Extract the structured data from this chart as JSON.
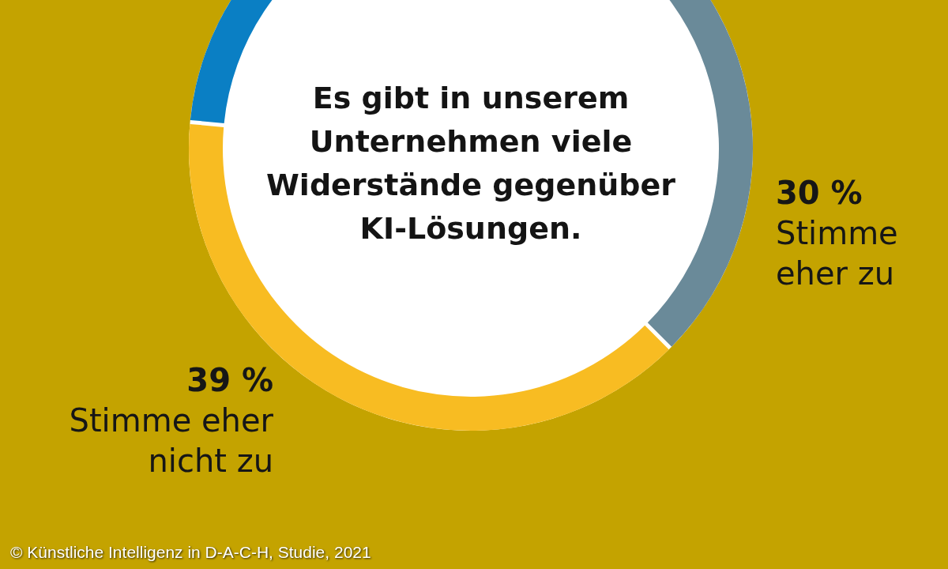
{
  "chart_data": {
    "type": "donut",
    "title": "Es gibt in unserem Unternehmen viele Widerstände gegenüber KI-Lösungen.",
    "categories": [
      "Stimme eher zu",
      "Stimme eher nicht zu",
      null
    ],
    "values": [
      30,
      39,
      31
    ],
    "value_labels": [
      "30 %",
      "39 %",
      null
    ],
    "colors": [
      "#6a8a99",
      "#f8bc22",
      "#0a7fc4"
    ],
    "annotations": [
      "© Künstliche Intelligenz in D-A-C-H, Studie, 2021"
    ]
  }
}
